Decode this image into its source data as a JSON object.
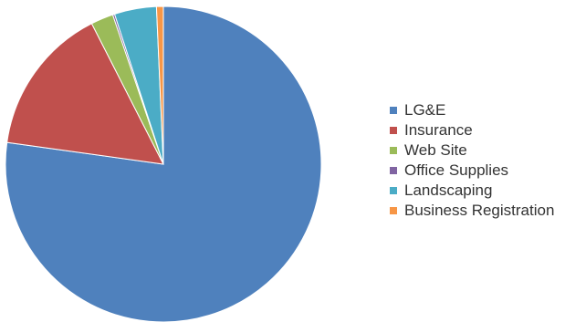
{
  "chart_data": {
    "type": "pie",
    "title": "",
    "legend_position": "right",
    "slices": [
      {
        "label": "LG&E",
        "value": 77.2,
        "color": "#4f81bd"
      },
      {
        "label": "Insurance",
        "value": 15.3,
        "color": "#c0504d"
      },
      {
        "label": "Web Site",
        "value": 2.3,
        "color": "#9bbb59"
      },
      {
        "label": "Office Supplies",
        "value": 0.2,
        "color": "#8064a2"
      },
      {
        "label": "Landscaping",
        "value": 4.3,
        "color": "#4bacc6"
      },
      {
        "label": "Business Registration",
        "value": 0.7,
        "color": "#f79646"
      }
    ]
  }
}
